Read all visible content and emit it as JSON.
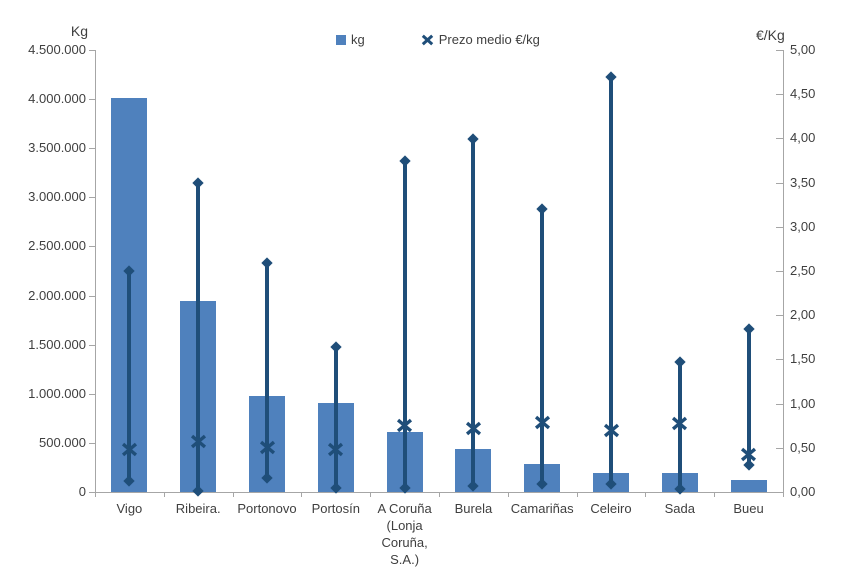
{
  "chart_data": {
    "type": "bar",
    "title": "",
    "subtitle": "",
    "legend_position": "top-center",
    "grid": false,
    "background": "#FFFFFF",
    "axis_color": "#A6A6A6",
    "text_color": "#3F3F3F",
    "categories": [
      "Vigo",
      "Ribeira.",
      "Portonovo",
      "Portosín",
      "A Coruña (Lonja Coruña, S.A.)",
      "Burela",
      "Camariñas",
      "Celeiro",
      "Sada",
      "Bueu"
    ],
    "category_display_lines": [
      [
        "Vigo"
      ],
      [
        "Ribeira."
      ],
      [
        "Portonovo"
      ],
      [
        "Portosín"
      ],
      [
        "A Coruña",
        "(Lonja",
        "Coruña,",
        "S.A.)"
      ],
      [
        "Burela"
      ],
      [
        "Camariñas"
      ],
      [
        "Celeiro"
      ],
      [
        "Sada"
      ],
      [
        "Bueu"
      ]
    ],
    "series": [
      {
        "name": "kg",
        "type": "bar",
        "axis": "left",
        "color": "#4F81BD",
        "values": [
          4010000,
          1940000,
          975000,
          910000,
          610000,
          440000,
          280000,
          195000,
          195000,
          125000
        ]
      },
      {
        "name": "Prezo medio €/kg",
        "type": "high-low-x-marker",
        "axis": "right",
        "color": "#1F4E79",
        "avg": [
          0.48,
          0.57,
          0.5,
          0.48,
          0.75,
          0.72,
          0.79,
          0.7,
          0.78,
          0.42
        ],
        "high": [
          2.5,
          3.49,
          2.59,
          1.64,
          3.75,
          3.99,
          3.2,
          4.7,
          1.47,
          1.84
        ],
        "low": [
          0.12,
          0.01,
          0.16,
          0.05,
          0.05,
          0.07,
          0.09,
          0.09,
          0.03,
          0.3
        ]
      }
    ],
    "left_axis": {
      "title": "Kg",
      "min": 0,
      "max": 4500000,
      "step": 500000,
      "tick_labels": [
        "0",
        "500.000",
        "1.000.000",
        "1.500.000",
        "2.000.000",
        "2.500.000",
        "3.000.000",
        "3.500.000",
        "4.000.000",
        "4.500.000"
      ]
    },
    "right_axis": {
      "title": "€/Kg",
      "min": 0,
      "max": 5,
      "step": 0.5,
      "tick_labels": [
        "0,00",
        "0,50",
        "1,00",
        "1,50",
        "2,00",
        "2,50",
        "3,00",
        "3,50",
        "4,00",
        "4,50",
        "5,00"
      ]
    }
  }
}
